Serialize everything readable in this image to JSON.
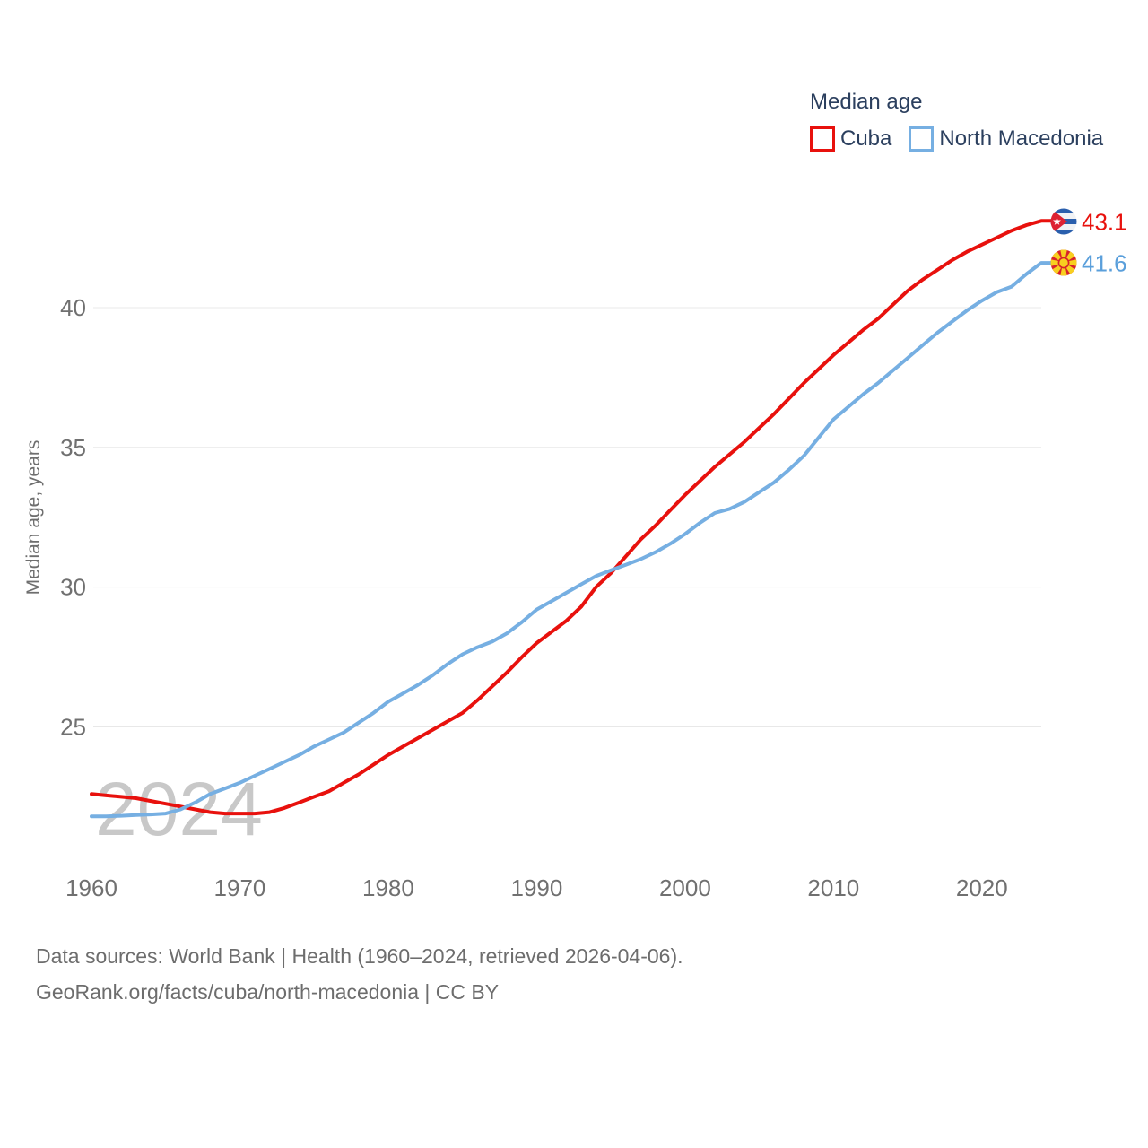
{
  "legend": {
    "title": "Median age",
    "items": [
      {
        "label": "Cuba",
        "color": "#e8110d"
      },
      {
        "label": "North Macedonia",
        "color": "#76afe2"
      }
    ]
  },
  "end_labels": [
    {
      "series": "Cuba",
      "value": "43.1",
      "color": "#e8110d",
      "flag": "cuba-flag"
    },
    {
      "series": "North Macedonia",
      "value": "41.6",
      "color": "#5a9fdb",
      "flag": "north-macedonia-flag"
    }
  ],
  "watermark": "2024",
  "footer": {
    "line1": "Data sources: World Bank | Health (1960–2024, retrieved 2026-04-06).",
    "line2": "GeoRank.org/facts/cuba/north-macedonia | CC BY"
  },
  "chart_data": {
    "type": "line",
    "title": "Median age",
    "xlabel": "",
    "ylabel": "Median age, years",
    "xlim": [
      1960,
      2024
    ],
    "ylim": [
      21,
      44
    ],
    "x_ticks": [
      1960,
      1970,
      1980,
      1990,
      2000,
      2010,
      2020
    ],
    "y_ticks": [
      25,
      30,
      35,
      40
    ],
    "grid": "horizontal",
    "legend_position": "top-right",
    "series": [
      {
        "name": "Cuba",
        "color": "#e8110d",
        "x_start": 1960,
        "values": [
          22.6,
          22.55,
          22.5,
          22.45,
          22.35,
          22.25,
          22.15,
          22.05,
          21.95,
          21.9,
          21.9,
          21.9,
          21.95,
          22.1,
          22.3,
          22.5,
          22.7,
          23.0,
          23.3,
          23.65,
          24.0,
          24.3,
          24.6,
          24.9,
          25.2,
          25.5,
          25.95,
          26.45,
          26.95,
          27.5,
          28.0,
          28.4,
          28.8,
          29.3,
          30.0,
          30.5,
          31.1,
          31.7,
          32.2,
          32.75,
          33.3,
          33.8,
          34.3,
          34.75,
          35.2,
          35.7,
          36.2,
          36.75,
          37.3,
          37.8,
          38.3,
          38.75,
          39.2,
          39.6,
          40.1,
          40.6,
          41.0,
          41.35,
          41.7,
          42.0,
          42.25,
          42.5,
          42.75,
          42.95,
          43.1
        ]
      },
      {
        "name": "North Macedonia",
        "color": "#76afe2",
        "x_start": 1960,
        "values": [
          21.8,
          21.8,
          21.82,
          21.85,
          21.87,
          21.9,
          22.05,
          22.3,
          22.6,
          22.8,
          23.0,
          23.25,
          23.5,
          23.75,
          24.0,
          24.3,
          24.55,
          24.8,
          25.15,
          25.5,
          25.9,
          26.2,
          26.5,
          26.85,
          27.25,
          27.6,
          27.85,
          28.05,
          28.35,
          28.75,
          29.2,
          29.5,
          29.8,
          30.1,
          30.4,
          30.6,
          30.8,
          31.0,
          31.25,
          31.55,
          31.9,
          32.3,
          32.65,
          32.8,
          33.05,
          33.4,
          33.75,
          34.2,
          34.7,
          35.35,
          36.0,
          36.45,
          36.9,
          37.3,
          37.75,
          38.2,
          38.65,
          39.1,
          39.5,
          39.9,
          40.25,
          40.55,
          40.75,
          41.2,
          41.6
        ]
      }
    ]
  }
}
